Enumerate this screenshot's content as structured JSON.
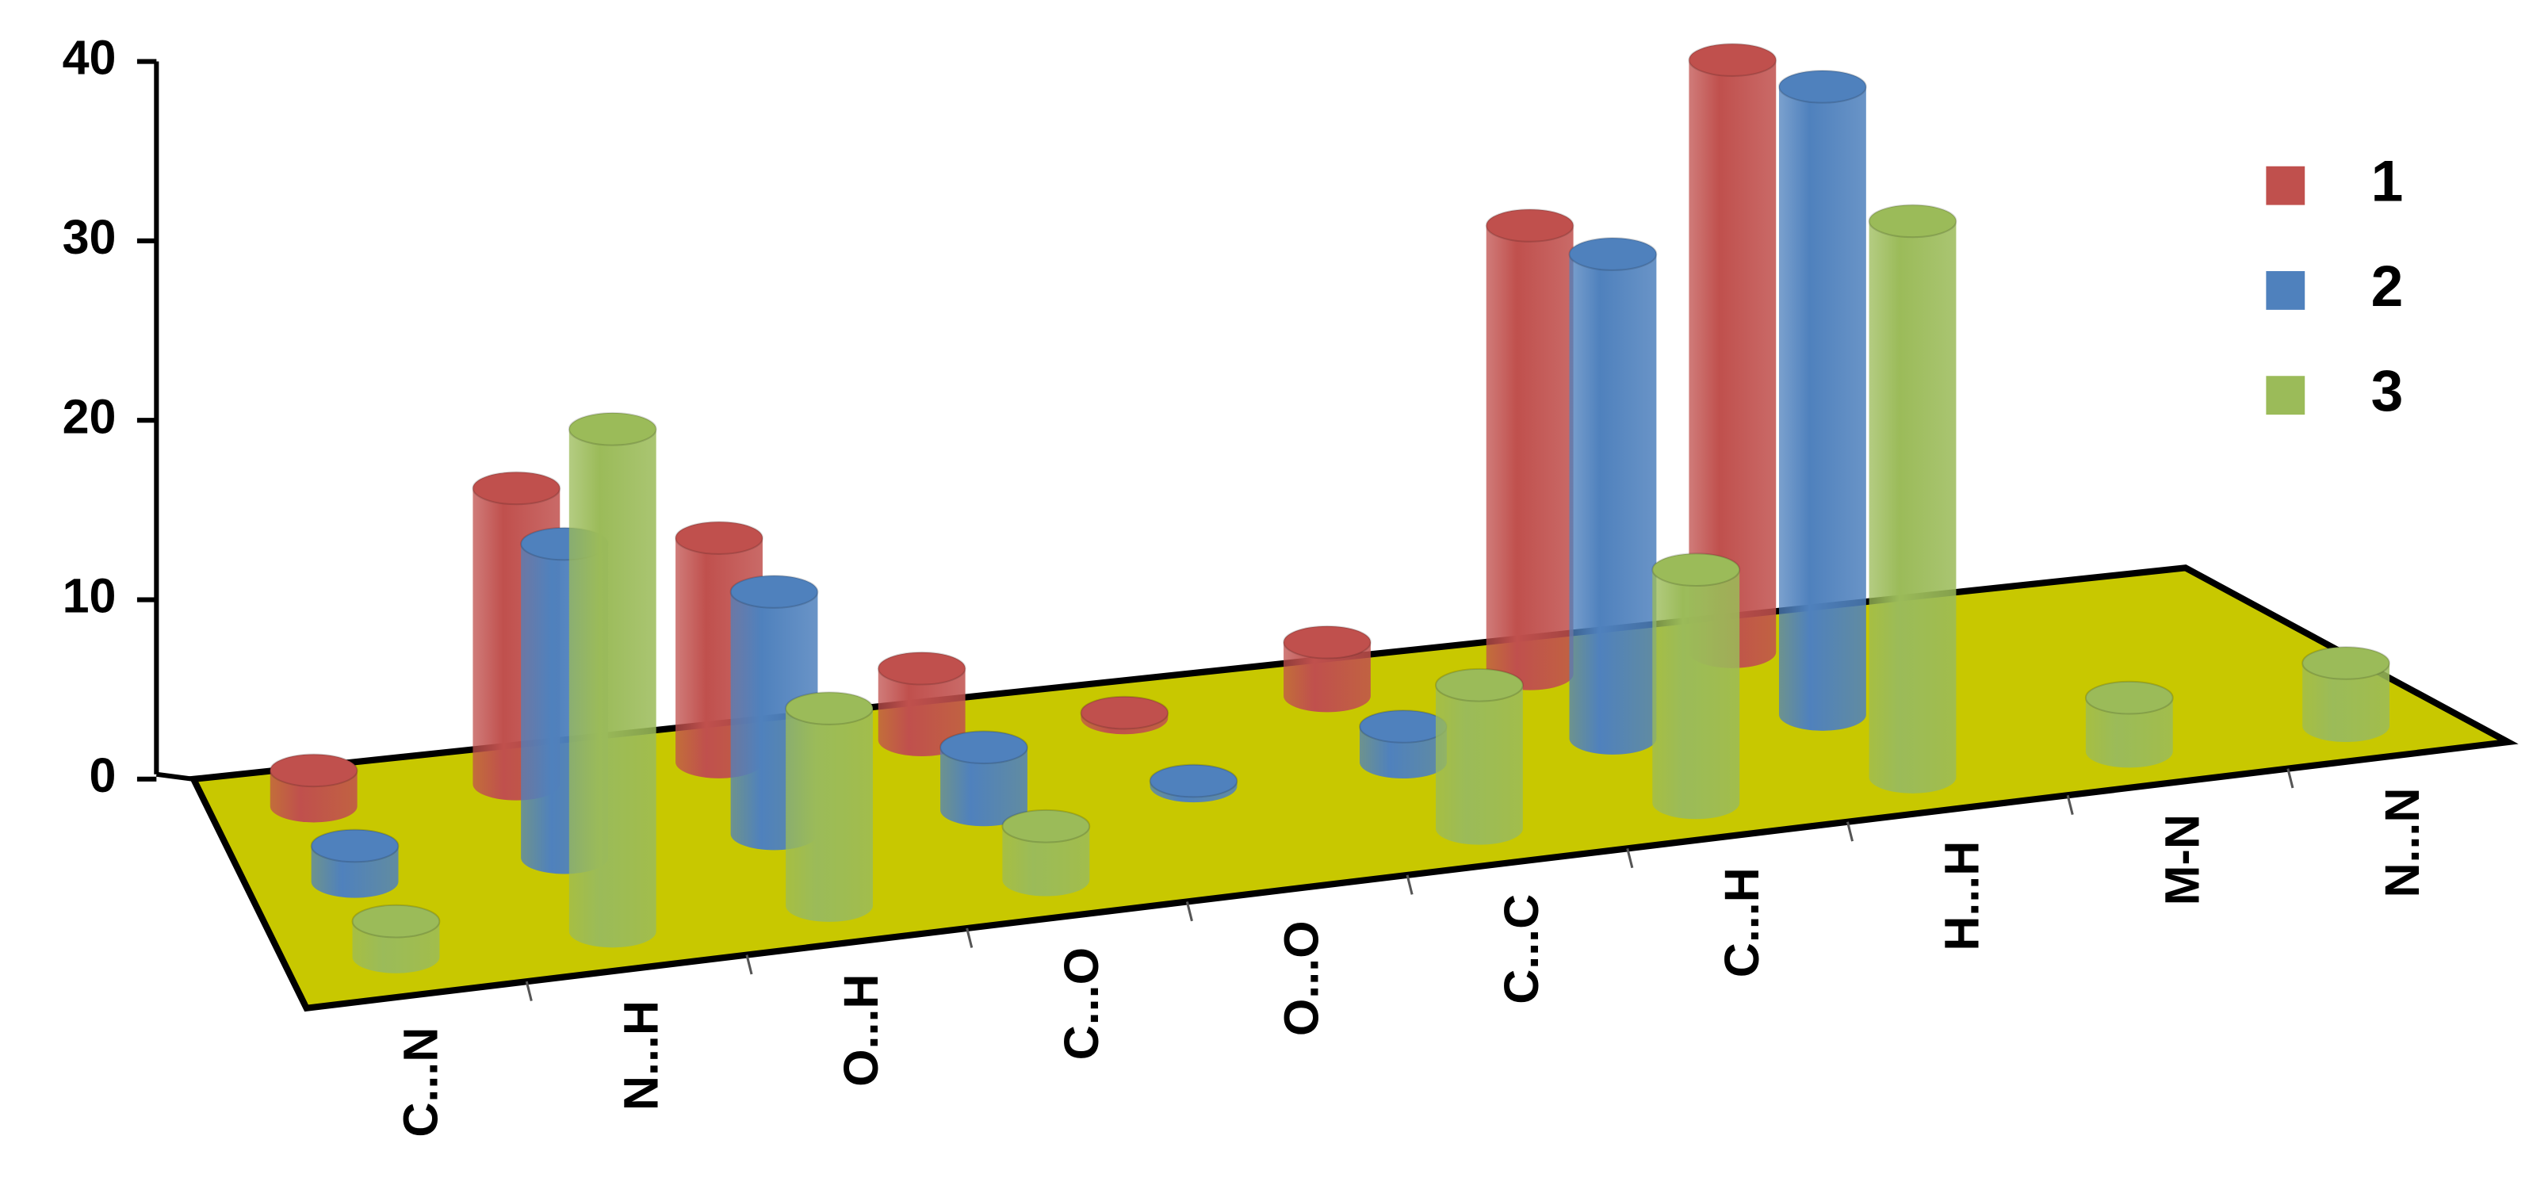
{
  "chart_data": {
    "type": "bar3d",
    "categories": [
      "C...N",
      "N...H",
      "O...H",
      "C...O",
      "O...O",
      "C...C",
      "C...H",
      "H...H",
      "M-N",
      "N...N"
    ],
    "series": [
      {
        "name": "1",
        "color": "#c0504d",
        "values": [
          2,
          16.5,
          12.5,
          4,
          0.3,
          3,
          25,
          33,
          0,
          0
        ]
      },
      {
        "name": "2",
        "color": "#4f81bd",
        "values": [
          2,
          17.5,
          13.5,
          3.5,
          0.3,
          2,
          27,
          35,
          0,
          0
        ]
      },
      {
        "name": "3",
        "color": "#9bbb59",
        "values": [
          2,
          28,
          11,
          3,
          0,
          8,
          13,
          31,
          3,
          3.5
        ]
      }
    ],
    "ylim": [
      0,
      40
    ],
    "yticks": [
      0,
      10,
      20,
      30,
      40
    ],
    "floor_color": "#c8c800",
    "legend": "right"
  }
}
